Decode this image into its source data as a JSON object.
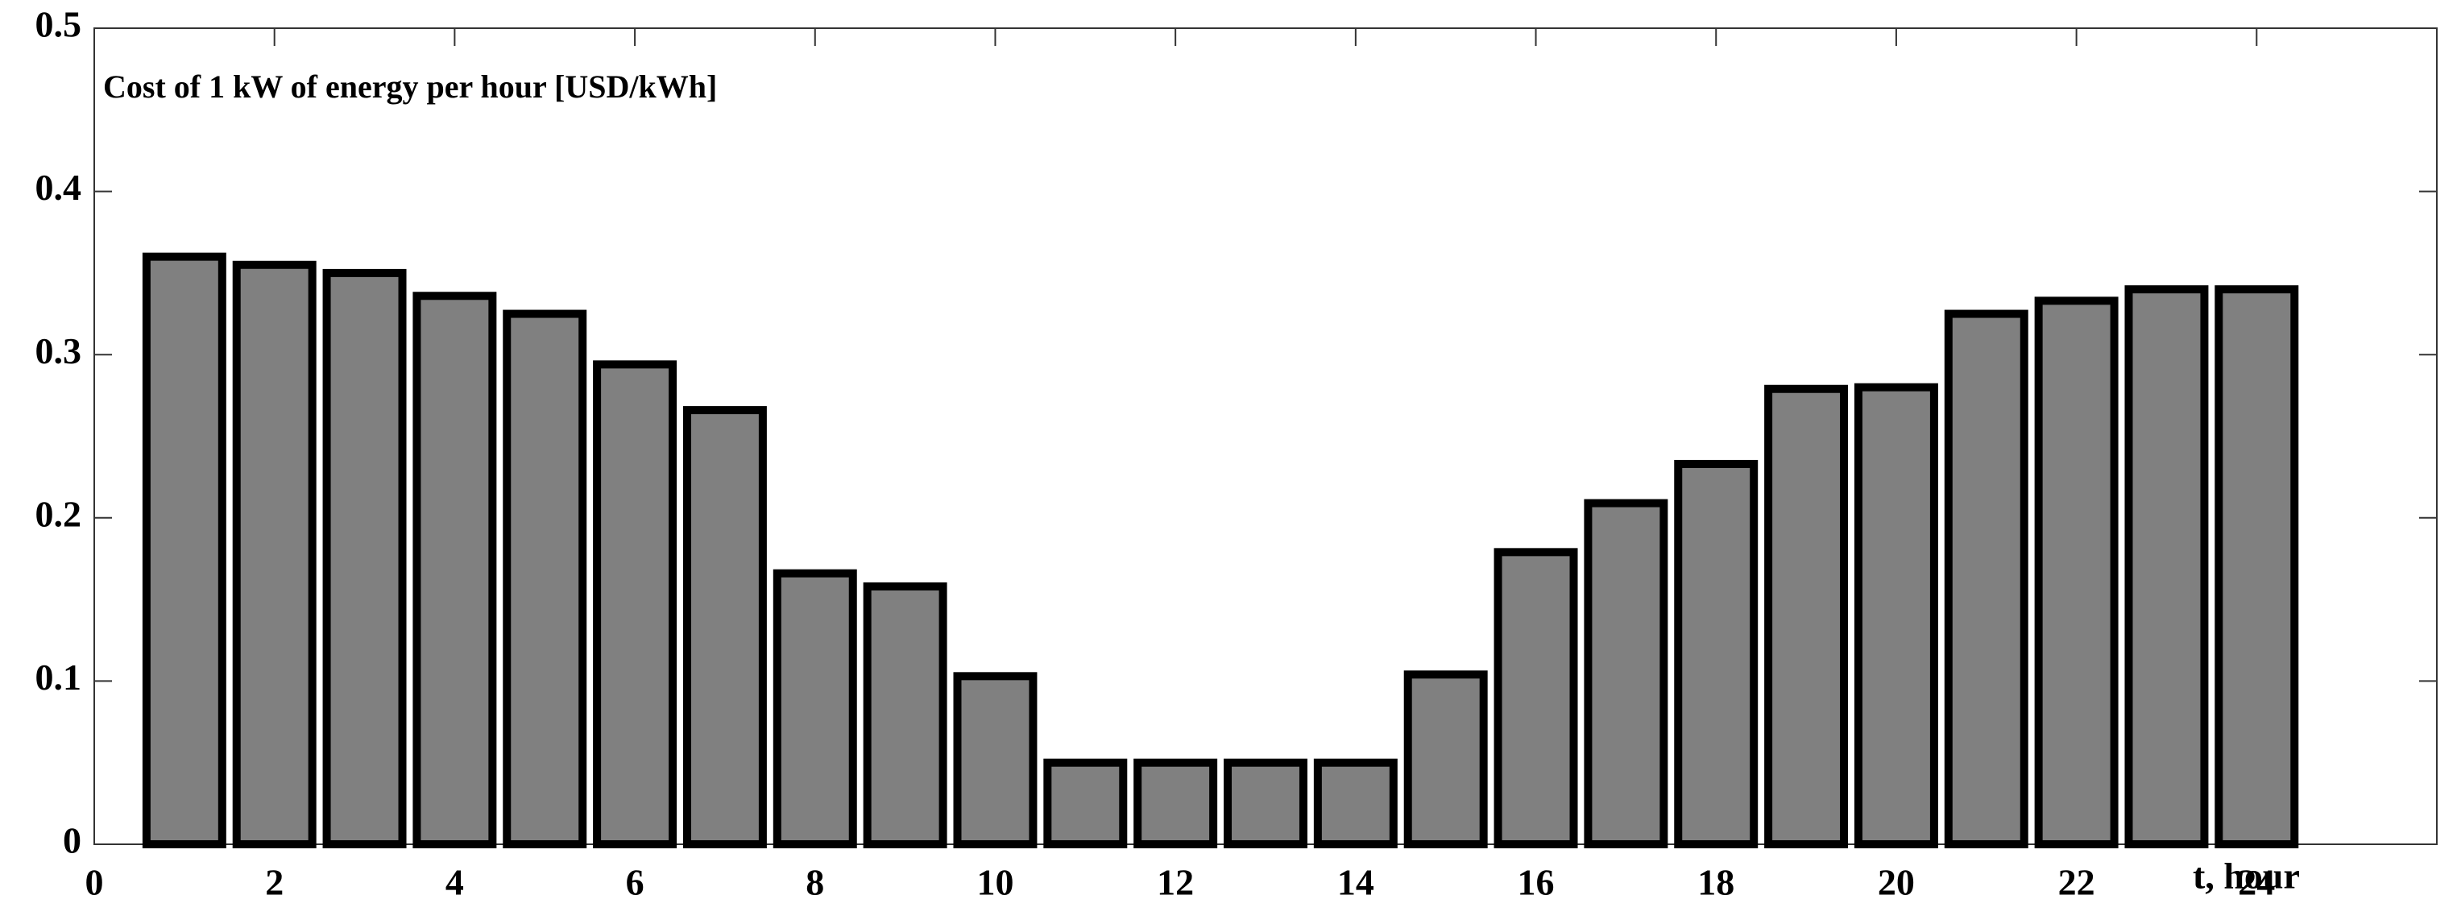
{
  "chart_data": {
    "type": "bar",
    "title": "Cost of 1 kW of energy per hour [USD/kWh]",
    "x_label": "t, hour",
    "x": [
      1,
      2,
      3,
      4,
      5,
      6,
      7,
      8,
      9,
      10,
      11,
      12,
      13,
      14,
      15,
      16,
      17,
      18,
      19,
      20,
      21,
      22,
      23,
      24
    ],
    "values": [
      0.36,
      0.355,
      0.35,
      0.336,
      0.325,
      0.294,
      0.266,
      0.166,
      0.158,
      0.103,
      0.05,
      0.05,
      0.05,
      0.05,
      0.104,
      0.179,
      0.209,
      0.233,
      0.279,
      0.28,
      0.325,
      0.333,
      0.34,
      0.34
    ],
    "color": "#808080",
    "edge_color": "#000000",
    "xlim": [
      0,
      26
    ],
    "xticks": [
      0,
      2,
      4,
      6,
      8,
      10,
      12,
      14,
      16,
      18,
      20,
      22,
      24
    ],
    "ylim": [
      0,
      0.5
    ],
    "yticks": [
      0,
      0.1,
      0.2,
      0.3,
      0.4,
      0.5
    ]
  }
}
